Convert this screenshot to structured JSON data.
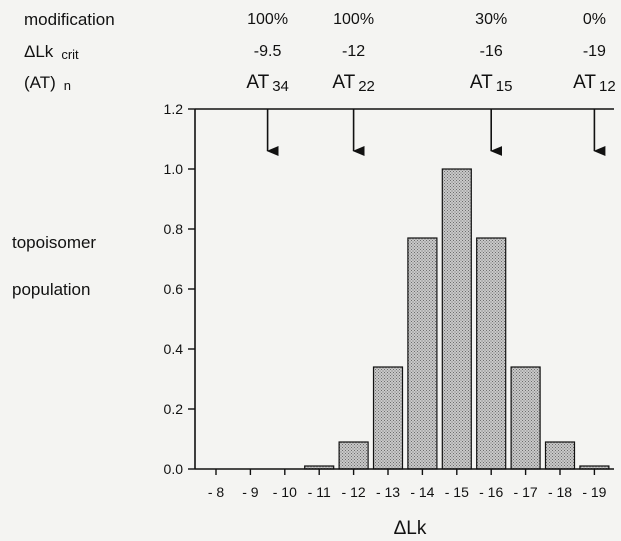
{
  "header_rows": {
    "modification_label": "modification",
    "dlk_label": "ΔLk",
    "dlk_sub": "crit",
    "at_label": "(AT)",
    "at_sub": "n"
  },
  "chart_data": {
    "type": "bar",
    "side_label_line1": "topoisomer",
    "side_label_line2": "population",
    "xlabel": "ΔLk",
    "ylim": [
      0,
      1.2
    ],
    "yticks": [
      "0.0",
      "0.2",
      "0.4",
      "0.6",
      "0.8",
      "1.0",
      "1.2"
    ],
    "categories": [
      "- 8",
      "- 9",
      "- 10",
      "- 11",
      "- 12",
      "- 13",
      "- 14",
      "- 15",
      "- 16",
      "- 17",
      "- 18",
      "- 19"
    ],
    "x_values": [
      -8,
      -9,
      -10,
      -11,
      -12,
      -13,
      -14,
      -15,
      -16,
      -17,
      -18,
      -19
    ],
    "values": [
      0,
      0,
      0,
      0.01,
      0.09,
      0.34,
      0.77,
      1.0,
      0.77,
      0.34,
      0.09,
      0.01
    ],
    "bar_fill": "#b8b8b8",
    "constructs": [
      {
        "modification": "100%",
        "dlk_crit": "-9.5",
        "at_base": "AT",
        "at_n": "34",
        "x": -9.5
      },
      {
        "modification": "100%",
        "dlk_crit": "-12",
        "at_base": "AT",
        "at_n": "22",
        "x": -12
      },
      {
        "modification": "30%",
        "dlk_crit": "-16",
        "at_base": "AT",
        "at_n": "15",
        "x": -16
      },
      {
        "modification": "0%",
        "dlk_crit": "-19",
        "at_base": "AT",
        "at_n": "12",
        "x": -19
      }
    ]
  }
}
